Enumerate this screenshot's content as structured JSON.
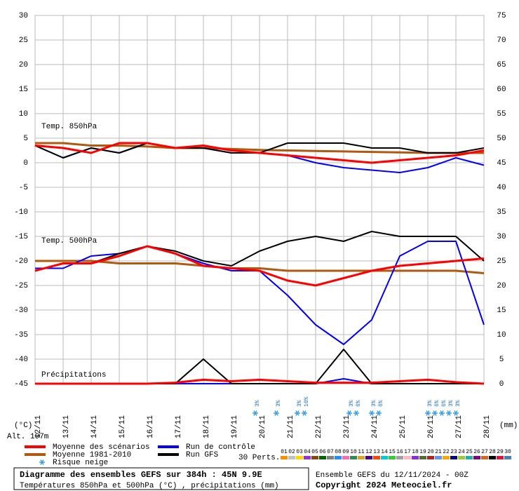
{
  "chart_data": {
    "type": "line",
    "xlim": [
      0,
      16
    ],
    "xticks": [
      {
        "value": 0,
        "label": "12/11"
      },
      {
        "value": 1,
        "label": "13/11"
      },
      {
        "value": 2,
        "label": "14/11"
      },
      {
        "value": 3,
        "label": "15/11"
      },
      {
        "value": 4,
        "label": "16/11"
      },
      {
        "value": 5,
        "label": "17/11"
      },
      {
        "value": 6,
        "label": "18/11"
      },
      {
        "value": 7,
        "label": "19/11"
      },
      {
        "value": 8,
        "label": "20/11"
      },
      {
        "value": 9,
        "label": "21/11"
      },
      {
        "value": 10,
        "label": "22/11"
      },
      {
        "value": 11,
        "label": "23/11"
      },
      {
        "value": 12,
        "label": "24/11"
      },
      {
        "value": 13,
        "label": "25/11"
      },
      {
        "value": 14,
        "label": "26/11"
      },
      {
        "value": 15,
        "label": "27/11"
      },
      {
        "value": 16,
        "label": "28/11"
      }
    ],
    "ylim": [
      -45,
      30
    ],
    "yticks": [
      30,
      25,
      20,
      15,
      10,
      5,
      0,
      -5,
      -10,
      -15,
      -20,
      -25,
      -30,
      -35,
      -40,
      -45
    ],
    "y2lim": [
      0,
      75
    ],
    "y2ticks": [
      75,
      70,
      65,
      60,
      55,
      50,
      45,
      40,
      35,
      30,
      25,
      20,
      15,
      10,
      5,
      0
    ],
    "y_unit": "(°C)",
    "y2_unit": "(mm)",
    "altitude": "Alt. 197m",
    "annotations": [
      "Temp. 850hPa",
      "Temp. 500hPa",
      "Précipitations"
    ],
    "grid": true,
    "x": [
      0,
      1,
      2,
      3,
      4,
      5,
      6,
      7,
      8,
      9,
      10,
      11,
      12,
      13,
      14,
      15,
      16
    ],
    "series": [
      {
        "name": "Moyenne 1981-2010",
        "color": "#b05a10",
        "t850": [
          4,
          4,
          3.5,
          3.5,
          3.3,
          3,
          3,
          2.8,
          2.6,
          2.5,
          2.4,
          2.3,
          2.2,
          2.1,
          2,
          2,
          2
        ],
        "t500": [
          -20,
          -20,
          -20,
          -20.5,
          -20.5,
          -20.5,
          -21,
          -21.5,
          -21.5,
          -22,
          -22,
          -22,
          -22,
          -22,
          -22,
          -22,
          -22.5
        ]
      },
      {
        "name": "Run de contrôle",
        "color": "#0000ff",
        "t850": [
          3.5,
          1,
          3,
          2,
          4,
          3,
          3,
          2,
          2,
          1.5,
          0,
          -1,
          -1.5,
          -2,
          -1,
          1,
          -0.5
        ],
        "t500": [
          -21.5,
          -21.5,
          -19,
          -18.5,
          -17,
          -18.5,
          -20.5,
          -22,
          -22,
          -27,
          -33,
          -37,
          -32,
          -19,
          -16,
          -16,
          -33
        ],
        "precip": [
          0,
          0,
          0,
          0,
          0,
          0,
          0,
          0,
          0,
          0,
          0,
          1,
          0,
          0,
          0,
          0,
          0
        ]
      },
      {
        "name": "Run GFS",
        "color": "#000000",
        "t850": [
          3.5,
          1,
          3,
          2,
          4,
          3,
          3,
          2,
          2,
          4,
          4,
          4,
          3,
          3,
          2,
          2,
          3
        ],
        "t500": [
          -22,
          -20.5,
          -20.5,
          -18.5,
          -17,
          -18,
          -20,
          -21,
          -18,
          -16,
          -15,
          -16,
          -14,
          -15,
          -15,
          -15,
          -20
        ],
        "precip": [
          0,
          0,
          0,
          0,
          0,
          0,
          5,
          0,
          0,
          0,
          0,
          7,
          0,
          0,
          0,
          0,
          0
        ]
      },
      {
        "name": "Moyenne des scénarios",
        "color": "#ff0000",
        "t850": [
          3.5,
          3,
          2,
          4,
          4,
          3,
          3.5,
          2.5,
          2,
          1.5,
          1,
          0.5,
          0,
          0.5,
          1,
          1.5,
          2.5
        ],
        "t500": [
          -22,
          -20.5,
          -20.5,
          -19,
          -17,
          -18.5,
          -21,
          -21.5,
          -22,
          -24,
          -25,
          -23.5,
          -22,
          -21,
          -20.5,
          -20,
          -19.5
        ],
        "precip": [
          0,
          0,
          0,
          0,
          0,
          0.2,
          0.8,
          0.5,
          0.8,
          0.5,
          0.2,
          0.2,
          0.2,
          0.5,
          0.8,
          0.3,
          0
        ]
      }
    ],
    "legend_order": [
      "Moyenne des scénarios",
      "Moyenne 1981-2010",
      "Run de contrôle",
      "Run GFS"
    ],
    "snow_risk": {
      "name": "Risque neige",
      "x": [
        7.85,
        8.6,
        9.35,
        9.6,
        11.2,
        11.45,
        12.0,
        12.25,
        14.0,
        14.25,
        14.5,
        14.75,
        15.0
      ],
      "values": [
        3,
        3,
        3,
        10,
        3,
        6,
        3,
        6,
        3,
        6,
        6,
        3,
        3
      ],
      "value_labels": [
        "3%",
        "3%",
        "3%",
        "10%",
        "3%",
        "6%",
        "3%",
        "6%",
        "3%",
        "6%",
        "6%",
        "3%",
        "3%"
      ]
    },
    "perts": {
      "label": "30 Perts.",
      "names": [
        "01",
        "02",
        "03",
        "04",
        "05",
        "06",
        "07",
        "08",
        "09",
        "10",
        "11",
        "12",
        "13",
        "14",
        "15",
        "16",
        "17",
        "18",
        "19",
        "20",
        "21",
        "22",
        "23",
        "24",
        "25",
        "26",
        "27",
        "28",
        "29",
        "30"
      ],
      "colors": [
        "#ff8c00",
        "#c0c0c0",
        "#ffd700",
        "#9932cc",
        "#8b4513",
        "#006400",
        "#808080",
        "#1e90ff",
        "#ff69b4",
        "#2e8b57",
        "#daa520",
        "#4b0082",
        "#ff4500",
        "#00ced1",
        "#32cd32",
        "#a0a0a0",
        "#ffb6c1",
        "#8a2be2",
        "#556b2f",
        "#b22222",
        "#6495ed",
        "#ffa500",
        "#000080",
        "#9acd32",
        "#20b2aa",
        "#800080",
        "#d2691e",
        "#000000",
        "#dc143c",
        "#4682b4"
      ]
    },
    "footer": {
      "title": "Diagramme des ensembles GEFS sur 384h : 45N 9.9E",
      "subtitle": "Températures 850hPa et 500hPa (°C) , précipitations (mm)",
      "run": "Ensemble GEFS du 12/11/2024 - 00Z",
      "copyright": "Copyright 2024 Meteociel.fr"
    }
  }
}
